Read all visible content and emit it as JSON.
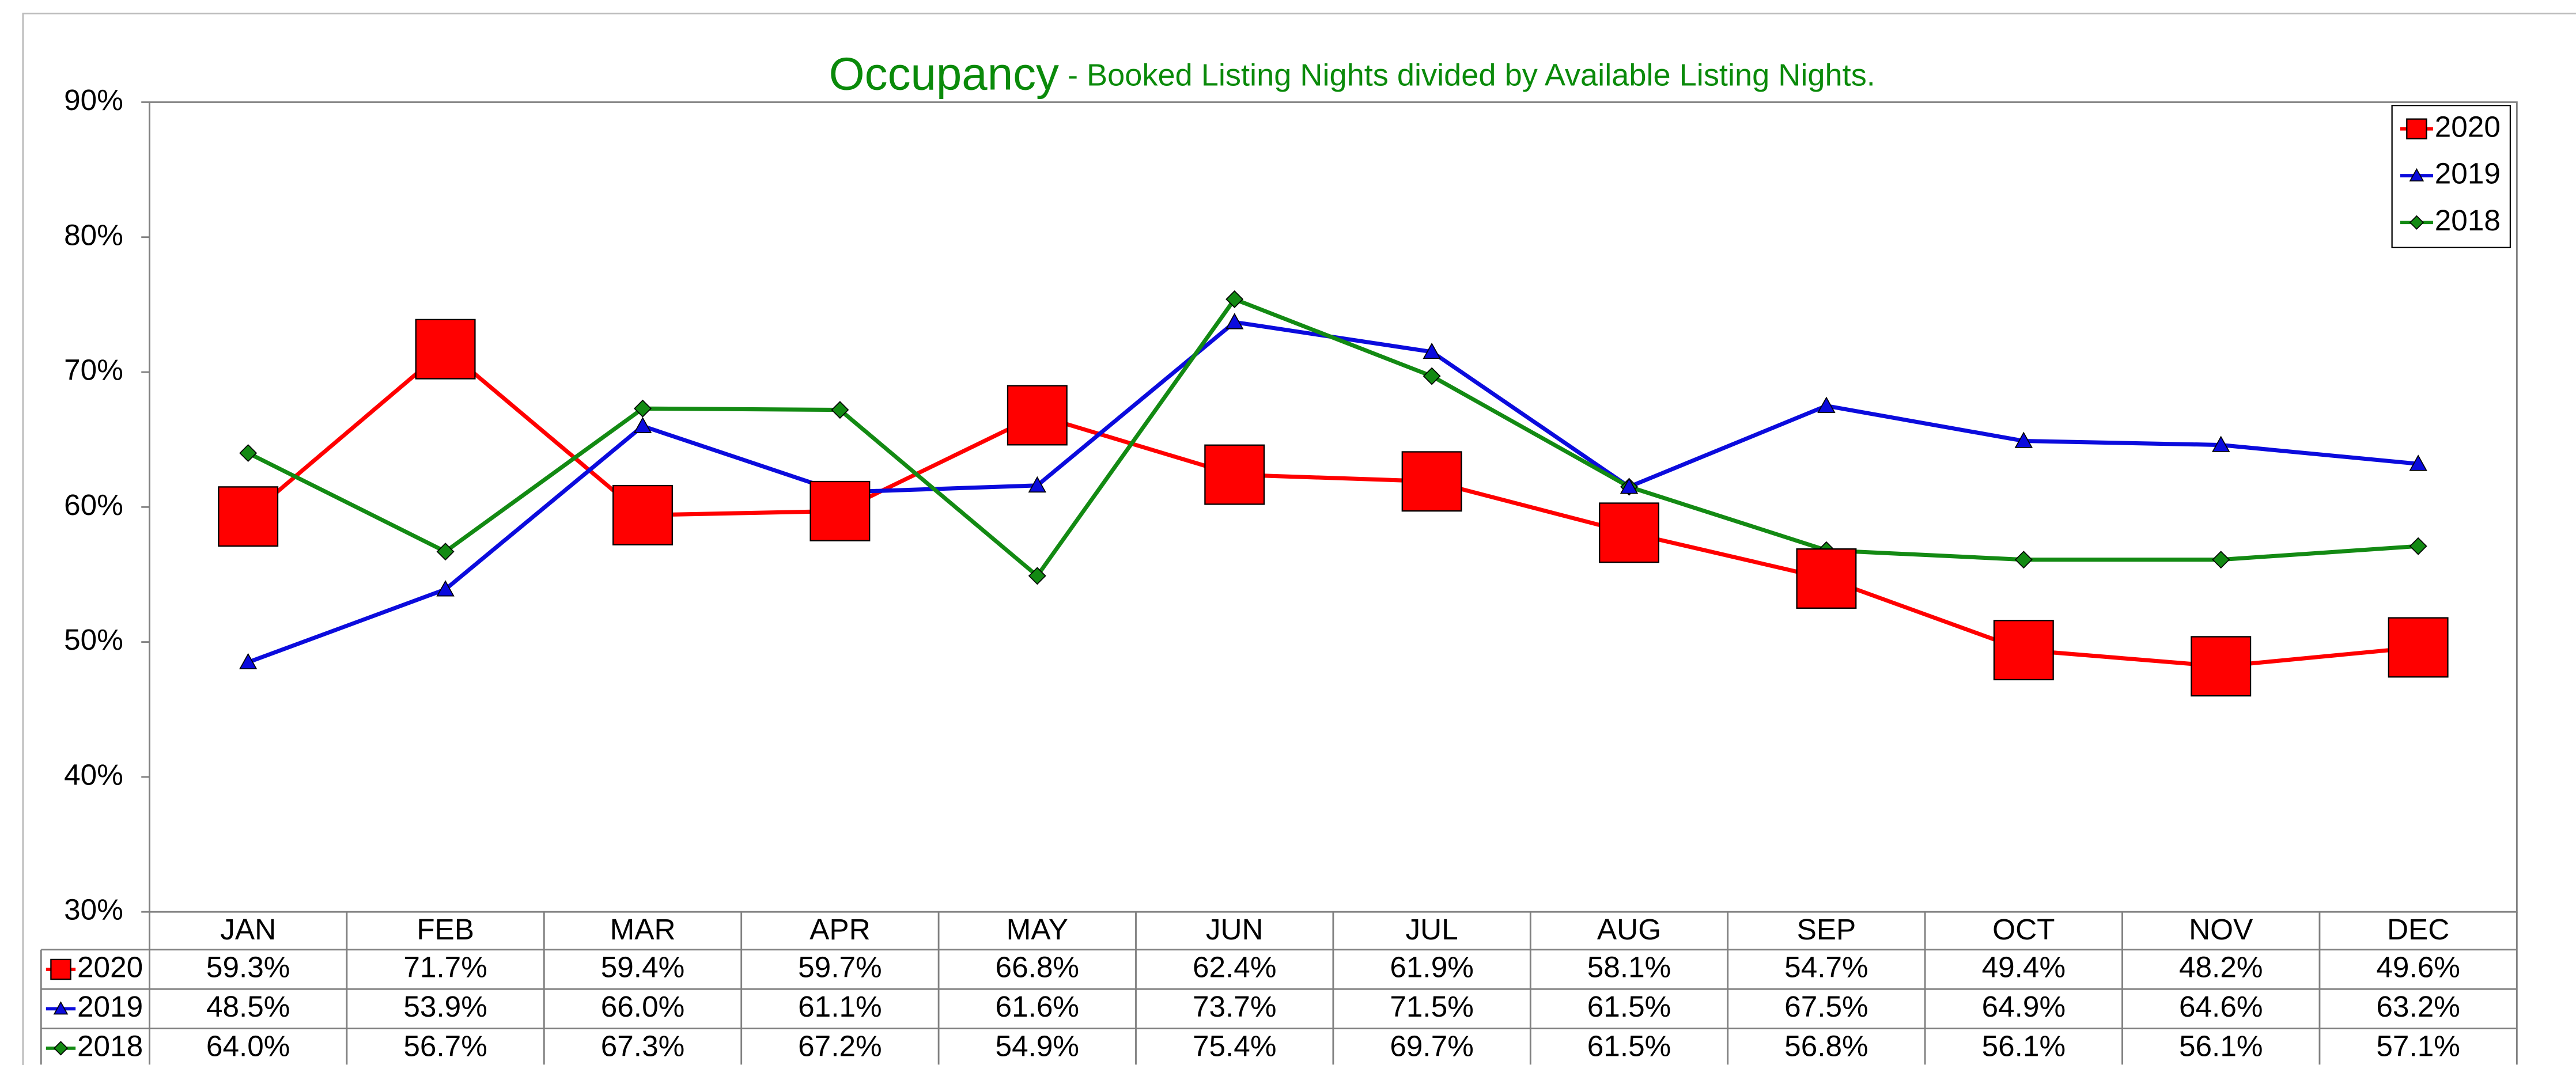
{
  "chart_data": {
    "type": "line",
    "title": "Occupancy",
    "subtitle": " - Booked Listing Nights divided by Available Listing Nights.",
    "categories": [
      "JAN",
      "FEB",
      "MAR",
      "APR",
      "MAY",
      "JUN",
      "JUL",
      "AUG",
      "SEP",
      "OCT",
      "NOV",
      "DEC"
    ],
    "series": [
      {
        "name": "2020",
        "color": "#ff0000",
        "marker": "square",
        "values": [
          59.3,
          71.7,
          59.4,
          59.7,
          66.8,
          62.4,
          61.9,
          58.1,
          54.7,
          49.4,
          48.2,
          49.6
        ],
        "value_labels": [
          "59.3%",
          "71.7%",
          "59.4%",
          "59.7%",
          "66.8%",
          "62.4%",
          "61.9%",
          "58.1%",
          "54.7%",
          "49.4%",
          "48.2%",
          "49.6%"
        ]
      },
      {
        "name": "2019",
        "color": "#0b0bdd",
        "marker": "triangle",
        "values": [
          48.5,
          53.9,
          66.0,
          61.1,
          61.6,
          73.7,
          71.5,
          61.5,
          67.5,
          64.9,
          64.6,
          63.2
        ],
        "value_labels": [
          "48.5%",
          "53.9%",
          "66.0%",
          "61.1%",
          "61.6%",
          "73.7%",
          "71.5%",
          "61.5%",
          "67.5%",
          "64.9%",
          "64.6%",
          "63.2%"
        ]
      },
      {
        "name": "2018",
        "color": "#138a13",
        "marker": "diamond",
        "values": [
          64.0,
          56.7,
          67.3,
          67.2,
          54.9,
          75.4,
          69.7,
          61.5,
          56.8,
          56.1,
          56.1,
          57.1
        ],
        "value_labels": [
          "64.0%",
          "56.7%",
          "67.3%",
          "67.2%",
          "54.9%",
          "75.4%",
          "69.7%",
          "61.5%",
          "56.8%",
          "56.1%",
          "56.1%",
          "57.1%"
        ]
      }
    ],
    "ylim": [
      30,
      90
    ],
    "yticks": [
      {
        "value": 30,
        "label": "30%"
      },
      {
        "value": 40,
        "label": "40%"
      },
      {
        "value": 50,
        "label": "50%"
      },
      {
        "value": 60,
        "label": "60%"
      },
      {
        "value": 70,
        "label": "70%"
      },
      {
        "value": 80,
        "label": "80%"
      },
      {
        "value": 90,
        "label": "90%"
      }
    ],
    "grid": false,
    "legend": "top-right"
  }
}
